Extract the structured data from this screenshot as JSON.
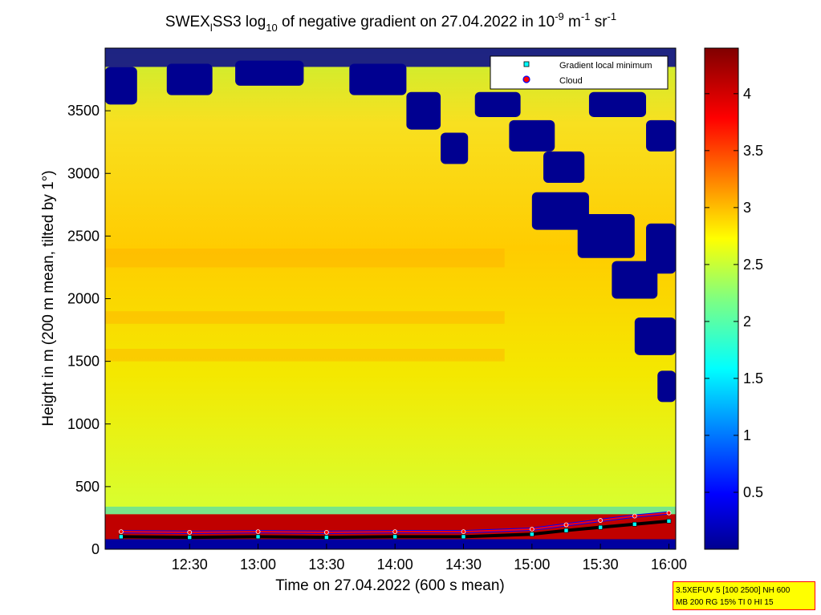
{
  "chart_data": {
    "type": "heatmap",
    "title": {
      "part1": "SWEX",
      "sub1": "l",
      "part2": "SS3 log",
      "sub2": "10",
      "part3": " of negative gradient on 27.04.2022 in 10",
      "sup1": "-9",
      "part4": " m",
      "sup2": "-1",
      "part5": " sr",
      "sup3": "-1"
    },
    "xlabel": "Time on 27.04.2022 (600 s mean)",
    "ylabel": "Height in m (200 m mean, tilted by 1°)",
    "x_range": [
      "11:53",
      "16:03"
    ],
    "x_ticks": [
      "12:30",
      "13:00",
      "13:30",
      "14:00",
      "14:30",
      "15:00",
      "15:30",
      "16:00"
    ],
    "y_range": [
      0,
      4000
    ],
    "y_ticks": [
      0,
      500,
      1000,
      1500,
      2000,
      2500,
      3000,
      3500
    ],
    "y_tick_labels": [
      "0",
      "500",
      "1000",
      "1500",
      "2000",
      "2500",
      "3000",
      "3500"
    ],
    "colorbar": {
      "range": [
        0,
        4.4
      ],
      "ticks": [
        0.5,
        1,
        1.5,
        2,
        2.5,
        3,
        3.5,
        4
      ],
      "tick_labels": [
        "0.5",
        "1",
        "1.5",
        "2",
        "2.5",
        "3",
        "3.5",
        "4"
      ],
      "colormap": "jet"
    },
    "legend": {
      "position": "top-right",
      "entries": [
        {
          "label": "Gradient local minimum",
          "color": "#00ffff",
          "marker": "square"
        },
        {
          "label": "Cloud",
          "color": "#ff0000",
          "marker": "circle"
        }
      ]
    },
    "field_summary": {
      "approx_value_midlevels": 2.8,
      "surface_layer_height_m": [
        0,
        280
      ],
      "surface_layer_value": 4.3,
      "clear_patches_after": "14:30",
      "clear_patches_min_height_m": 1500
    },
    "series": [
      {
        "name": "Cloud",
        "x": [
          "12:00",
          "12:30",
          "13:00",
          "13:30",
          "14:00",
          "14:30",
          "15:00",
          "15:15",
          "15:30",
          "15:45",
          "16:00"
        ],
        "y": [
          140,
          135,
          140,
          135,
          140,
          140,
          160,
          195,
          230,
          265,
          290
        ]
      },
      {
        "name": "Gradient local minimum",
        "x": [
          "12:00",
          "12:30",
          "13:00",
          "13:30",
          "14:00",
          "14:30",
          "15:00",
          "15:15",
          "15:30",
          "15:45",
          "16:00"
        ],
        "y": [
          100,
          95,
          100,
          95,
          100,
          100,
          120,
          150,
          175,
          200,
          225
        ]
      }
    ]
  },
  "info_box": {
    "line1": "3.5XEFUV 5 [100 2500] NH 600",
    "line2": "MB 200 RG 15% TI 0 HI 15"
  }
}
